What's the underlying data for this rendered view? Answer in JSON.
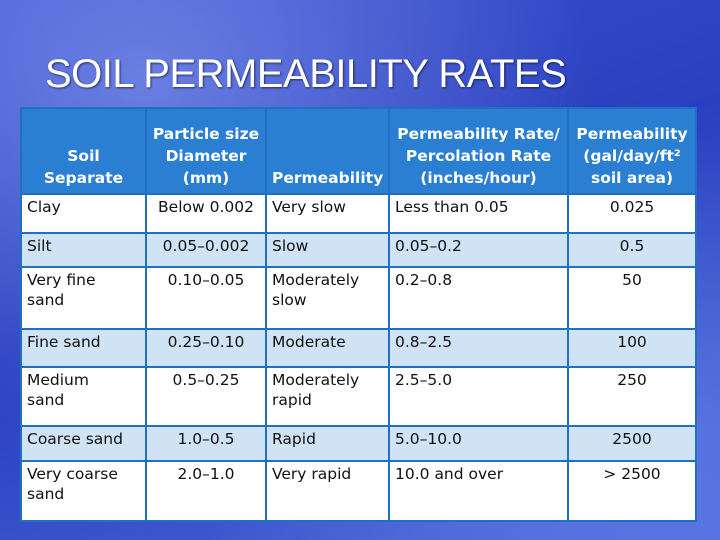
{
  "title": "SOIL PERMEABILITY RATES",
  "table": {
    "header": [
      [
        "Soil",
        "Separate"
      ],
      [
        "Particle size",
        "Diameter",
        "(mm)"
      ],
      [
        "Permeability"
      ],
      [
        "Permeability Rate/",
        "Percolation Rate",
        "(inches/hour)"
      ],
      [
        "Permeability",
        "(gal/day/ft²",
        "soil area)"
      ]
    ],
    "rows": [
      [
        "Clay",
        "Below 0.002",
        "Very slow",
        "Less than 0.05",
        "0.025"
      ],
      [
        "Silt",
        "0.05–0.002",
        "Slow",
        "0.05–0.2",
        "0.5"
      ],
      [
        [
          "Very fine",
          "sand"
        ],
        "0.10–0.05",
        [
          "Moderately",
          "slow"
        ],
        "0.2–0.8",
        "50"
      ],
      [
        "Fine sand",
        "0.25–0.10",
        "Moderate",
        "0.8–2.5",
        "100"
      ],
      [
        [
          "Medium",
          "sand"
        ],
        "0.5–0.25",
        [
          "Moderately",
          "rapid"
        ],
        "2.5–5.0",
        "250"
      ],
      [
        "Coarse sand",
        "1.0–0.5",
        "Rapid",
        "5.0–10.0",
        "2500"
      ],
      [
        [
          "Very coarse",
          "sand"
        ],
        "2.0–1.0",
        "Very rapid",
        "10.0 and over",
        "> 2500"
      ]
    ]
  }
}
